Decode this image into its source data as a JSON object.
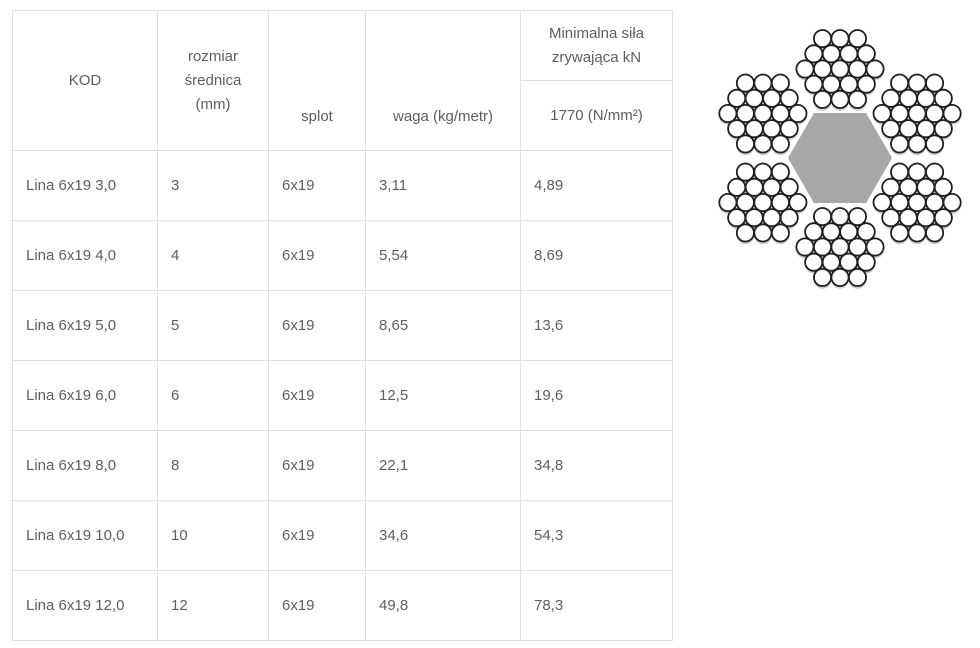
{
  "table": {
    "column_keys": [
      "kod",
      "rozmiar",
      "splot",
      "waga",
      "sila"
    ],
    "headers": {
      "kod": "KOD",
      "rozmiar": "rozmiar\nśrednica\n(mm)",
      "splot": "splot",
      "waga": "waga (kg/metr)",
      "sila_top": "Minimalna siła\nzrywająca kN",
      "sila_bottom": "1770 (N/mm²)"
    },
    "rows": [
      [
        "Lina 6x19 3,0",
        "3",
        "6x19",
        "3,11",
        "4,89"
      ],
      [
        "Lina 6x19 4,0",
        "4",
        "6x19",
        "5,54",
        "8,69"
      ],
      [
        "Lina 6x19 5,0",
        "5",
        "6x19",
        "8,65",
        "13,6"
      ],
      [
        "Lina 6x19 6,0",
        "6",
        "6x19",
        "12,5",
        "19,6"
      ],
      [
        "Lina 6x19 8,0",
        "8",
        "6x19",
        "22,1",
        "34,8"
      ],
      [
        "Lina 6x19 10,0",
        "10",
        "6x19",
        "34,6",
        "54,3"
      ],
      [
        "Lina 6x19 12,0",
        "12",
        "6x19",
        "49,8",
        "78,3"
      ]
    ],
    "border_color": "#e0e0e0",
    "text_color": "#5d5e61"
  },
  "diagram": {
    "label": "6x19 wire rope cross-section",
    "strands": 6,
    "wires_per_strand": 19,
    "colors": {
      "core": "#a7a7a7",
      "wire_fill": "#ffffff",
      "wire_stroke": "#1f1f1f",
      "wire_shadow": "#9a9a9a"
    }
  }
}
